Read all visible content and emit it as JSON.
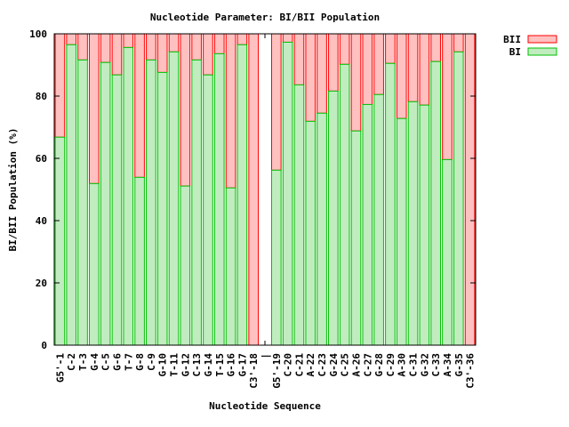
{
  "chart_data": {
    "type": "bar",
    "stacked": true,
    "title": "Nucleotide Parameter: BI/BII Population",
    "xlabel": "Nucleotide Sequence",
    "ylabel": "BI/BII Population (%)",
    "ylim": [
      0,
      100
    ],
    "yticks": [
      0,
      20,
      40,
      60,
      80,
      100
    ],
    "grid": false,
    "legend_position": "top-right, outside",
    "categories": [
      "G5'-1",
      "C-2",
      "T-3",
      "G-4",
      "C-5",
      "G-6",
      "T-7",
      "G-8",
      "C-9",
      "G-10",
      "T-11",
      "G-12",
      "C-13",
      "G-14",
      "T-15",
      "G-16",
      "G-17",
      "C3'-18",
      "|",
      "G5'-19",
      "C-20",
      "C-21",
      "A-22",
      "C-23",
      "G-24",
      "C-25",
      "A-26",
      "C-27",
      "G-28",
      "C-29",
      "A-30",
      "C-31",
      "G-32",
      "C-33",
      "A-34",
      "G-35",
      "C3'-36"
    ],
    "series": [
      {
        "name": "BI",
        "color": "#c0ecc0",
        "edge": "#00c000",
        "values": [
          66.8,
          96.5,
          91.6,
          51.9,
          90.8,
          86.8,
          95.6,
          53.9,
          91.6,
          87.6,
          94.2,
          51.1,
          91.6,
          86.8,
          93.6,
          50.5,
          96.5,
          0,
          null,
          56.2,
          97.3,
          83.6,
          71.9,
          74.5,
          81.6,
          90.2,
          68.8,
          77.3,
          80.5,
          90.5,
          72.8,
          78.2,
          77.1,
          91.1,
          59.6,
          94.2,
          0
        ]
      },
      {
        "name": "BII",
        "color": "#ffc0c0",
        "edge": "#ff0000",
        "values": [
          33.2,
          3.5,
          8.4,
          48.1,
          9.2,
          13.2,
          4.4,
          46.1,
          8.4,
          12.4,
          5.8,
          48.9,
          8.4,
          13.2,
          6.4,
          49.5,
          3.5,
          100,
          null,
          43.8,
          2.7,
          16.4,
          28.1,
          25.5,
          18.4,
          9.8,
          31.2,
          22.7,
          19.5,
          9.5,
          27.2,
          21.8,
          22.9,
          8.9,
          40.4,
          5.8,
          100
        ]
      }
    ]
  }
}
